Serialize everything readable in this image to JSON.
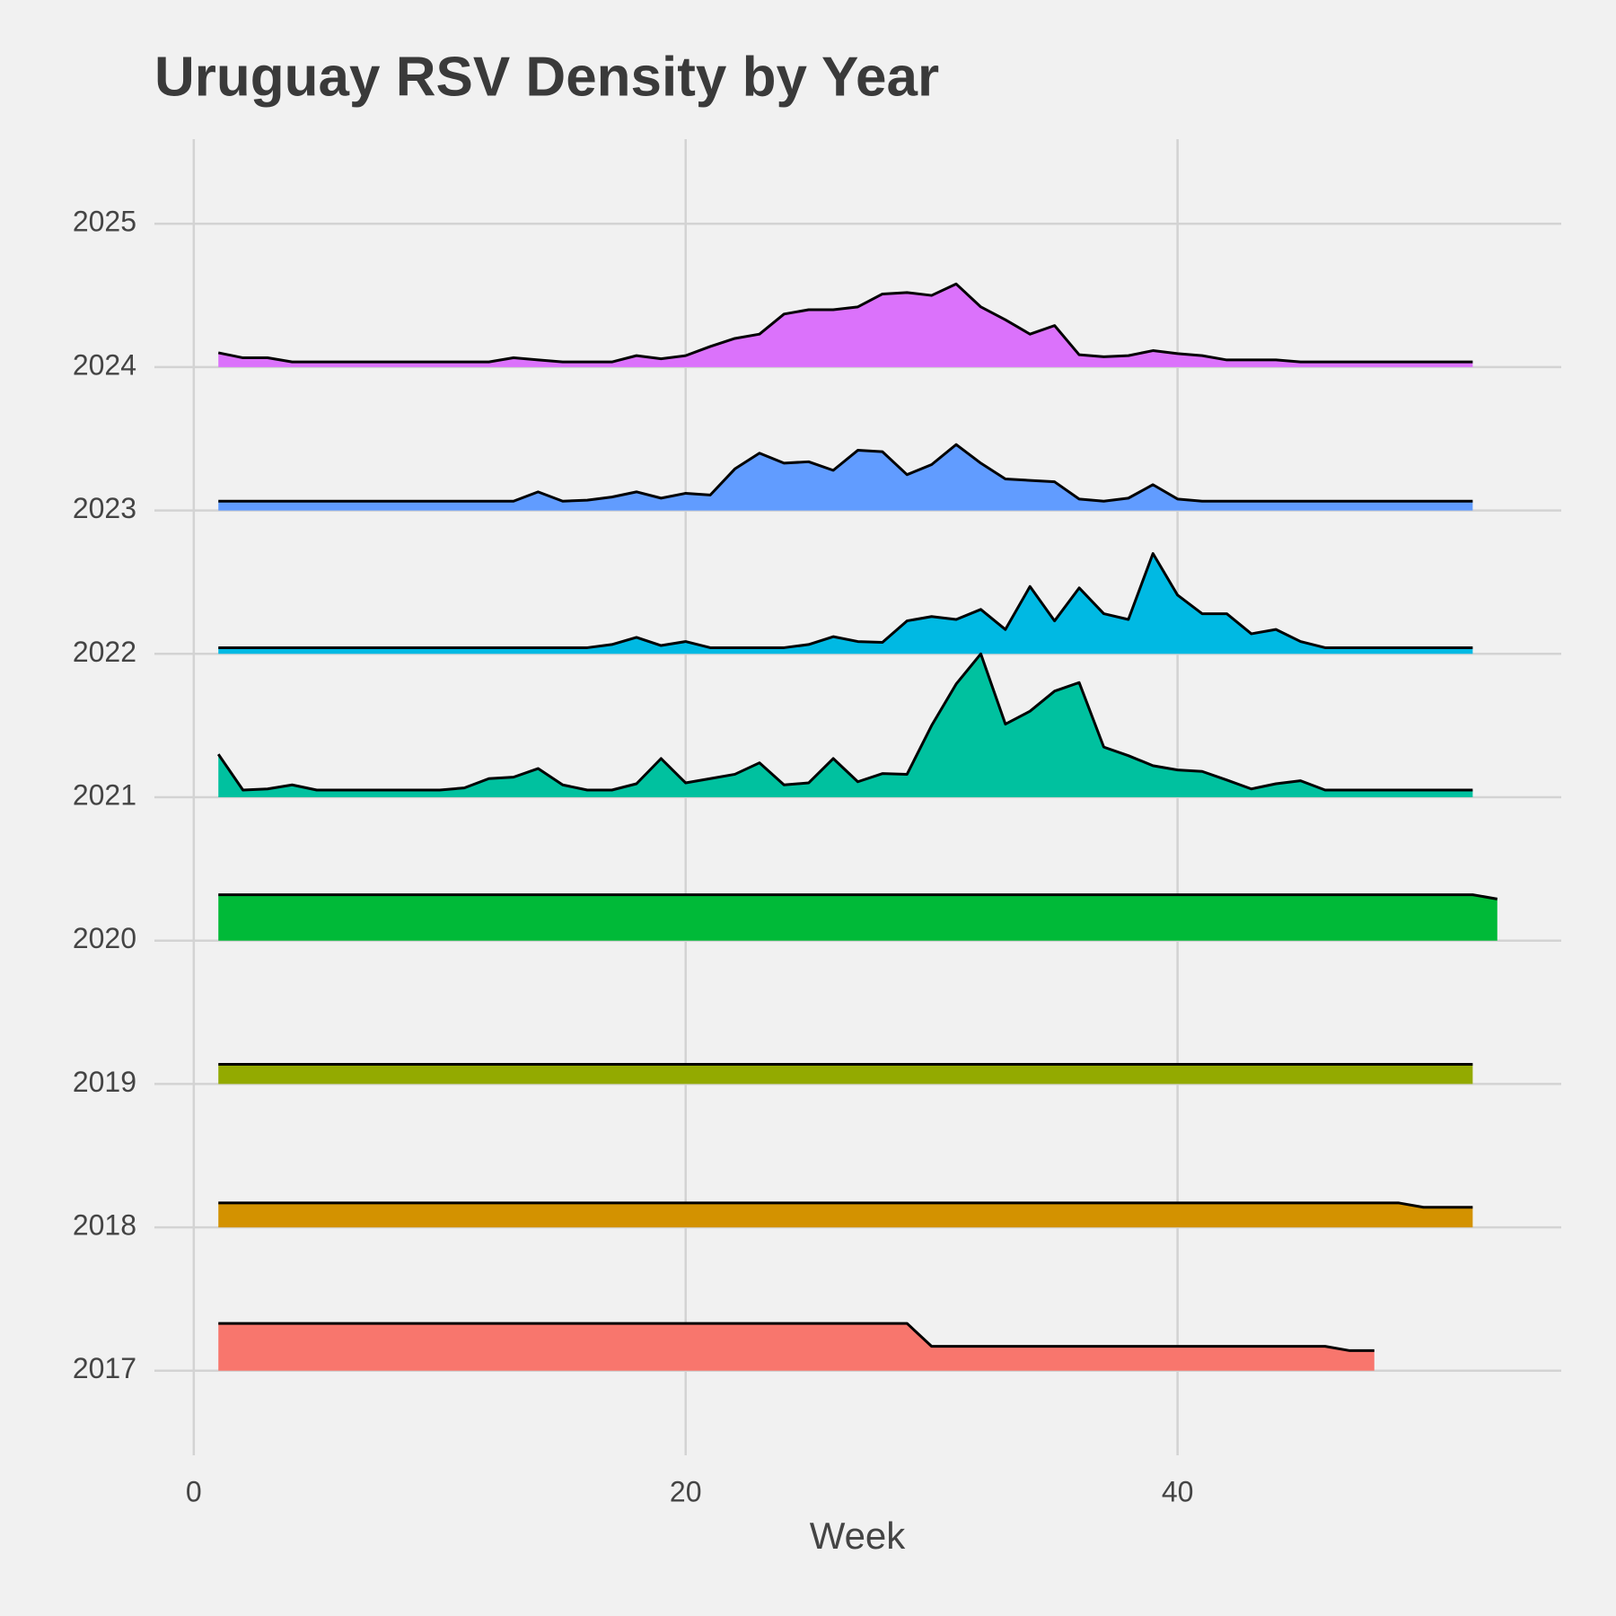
{
  "chart_data": {
    "type": "ridgeline",
    "title": "Uruguay RSV Density by Year",
    "x_label": "Week",
    "x": [
      1,
      2,
      3,
      4,
      5,
      6,
      7,
      8,
      9,
      10,
      11,
      12,
      13,
      14,
      15,
      16,
      17,
      18,
      19,
      20,
      21,
      22,
      23,
      24,
      25,
      26,
      27,
      28,
      29,
      30,
      31,
      32,
      33,
      34,
      35,
      36,
      37,
      38,
      39,
      40,
      41,
      42,
      43,
      44,
      45,
      46,
      47,
      48,
      49,
      50,
      51,
      52,
      53
    ],
    "xlim": [
      -1.6,
      55.6
    ],
    "xticks": [
      0,
      20,
      40
    ],
    "ylim": [
      2016.41,
      2025.59
    ],
    "yticks": [
      2017,
      2018,
      2019,
      2020,
      2021,
      2022,
      2023,
      2024,
      2025
    ],
    "grid": true,
    "series": [
      {
        "color": "#F8766D",
        "values": [
          0.33,
          0.33,
          0.33,
          0.33,
          0.33,
          0.33,
          0.33,
          0.33,
          0.33,
          0.33,
          0.33,
          0.33,
          0.33,
          0.33,
          0.33,
          0.33,
          0.33,
          0.33,
          0.33,
          0.33,
          0.33,
          0.33,
          0.33,
          0.33,
          0.33,
          0.33,
          0.33,
          0.33,
          0.33,
          0.17,
          0.17,
          0.17,
          0.17,
          0.17,
          0.17,
          0.17,
          0.17,
          0.17,
          0.17,
          0.17,
          0.17,
          0.17,
          0.17,
          0.17,
          0.17,
          0.17,
          0.14,
          0.14,
          null,
          null,
          null,
          null,
          null
        ]
      },
      {
        "color": "#D39200",
        "values": [
          0.17,
          0.17,
          0.17,
          0.17,
          0.17,
          0.17,
          0.17,
          0.17,
          0.17,
          0.17,
          0.17,
          0.17,
          0.17,
          0.17,
          0.17,
          0.17,
          0.17,
          0.17,
          0.17,
          0.17,
          0.17,
          0.17,
          0.17,
          0.17,
          0.17,
          0.17,
          0.17,
          0.17,
          0.17,
          0.17,
          0.17,
          0.17,
          0.17,
          0.17,
          0.17,
          0.17,
          0.17,
          0.17,
          0.17,
          0.17,
          0.17,
          0.17,
          0.17,
          0.17,
          0.17,
          0.17,
          0.17,
          0.17,
          0.17,
          0.14,
          0.14,
          0.14,
          null
        ]
      },
      {
        "color": "#93AA00",
        "values": [
          0.137,
          0.137,
          0.137,
          0.137,
          0.137,
          0.137,
          0.137,
          0.137,
          0.137,
          0.137,
          0.137,
          0.137,
          0.137,
          0.137,
          0.137,
          0.137,
          0.137,
          0.137,
          0.137,
          0.137,
          0.137,
          0.137,
          0.137,
          0.137,
          0.137,
          0.137,
          0.137,
          0.137,
          0.137,
          0.137,
          0.137,
          0.137,
          0.137,
          0.137,
          0.137,
          0.137,
          0.137,
          0.137,
          0.137,
          0.137,
          0.137,
          0.137,
          0.137,
          0.137,
          0.137,
          0.137,
          0.137,
          0.137,
          0.137,
          0.137,
          0.137,
          0.137,
          null
        ]
      },
      {
        "color": "#00BA38",
        "values": [
          0.32,
          0.32,
          0.32,
          0.32,
          0.32,
          0.32,
          0.32,
          0.32,
          0.32,
          0.32,
          0.32,
          0.32,
          0.32,
          0.32,
          0.32,
          0.32,
          0.32,
          0.32,
          0.32,
          0.32,
          0.32,
          0.32,
          0.32,
          0.32,
          0.32,
          0.32,
          0.32,
          0.32,
          0.32,
          0.32,
          0.32,
          0.32,
          0.32,
          0.32,
          0.32,
          0.32,
          0.32,
          0.32,
          0.32,
          0.32,
          0.32,
          0.32,
          0.32,
          0.32,
          0.32,
          0.32,
          0.32,
          0.32,
          0.32,
          0.32,
          0.32,
          0.32,
          0.29
        ]
      },
      {
        "color": "#00C19F",
        "values": [
          0.3,
          0.05,
          0.058,
          0.086,
          0.05,
          0.05,
          0.05,
          0.05,
          0.05,
          0.05,
          0.065,
          0.13,
          0.14,
          0.2,
          0.086,
          0.05,
          0.05,
          0.094,
          0.27,
          0.1,
          0.13,
          0.16,
          0.24,
          0.086,
          0.1,
          0.27,
          0.108,
          0.165,
          0.16,
          0.5,
          0.79,
          1.0,
          0.51,
          0.6,
          0.74,
          0.8,
          0.35,
          0.29,
          0.22,
          0.19,
          0.18,
          0.12,
          0.058,
          0.094,
          0.115,
          0.05,
          0.05,
          0.05,
          0.05,
          0.05,
          0.05,
          0.05,
          null
        ]
      },
      {
        "color": "#00B9E3",
        "values": [
          0.043,
          0.043,
          0.043,
          0.043,
          0.043,
          0.043,
          0.043,
          0.043,
          0.043,
          0.043,
          0.043,
          0.043,
          0.043,
          0.043,
          0.043,
          0.043,
          0.065,
          0.115,
          0.058,
          0.086,
          0.043,
          0.043,
          0.043,
          0.043,
          0.065,
          0.12,
          0.086,
          0.08,
          0.23,
          0.26,
          0.24,
          0.31,
          0.17,
          0.47,
          0.23,
          0.46,
          0.28,
          0.24,
          0.7,
          0.41,
          0.28,
          0.28,
          0.14,
          0.17,
          0.086,
          0.043,
          0.043,
          0.043,
          0.043,
          0.043,
          0.043,
          0.043,
          null
        ]
      },
      {
        "color": "#619CFF",
        "values": [
          0.065,
          0.065,
          0.065,
          0.065,
          0.065,
          0.065,
          0.065,
          0.065,
          0.065,
          0.065,
          0.065,
          0.065,
          0.065,
          0.13,
          0.065,
          0.072,
          0.094,
          0.13,
          0.086,
          0.12,
          0.108,
          0.29,
          0.4,
          0.33,
          0.34,
          0.28,
          0.42,
          0.41,
          0.25,
          0.32,
          0.46,
          0.33,
          0.22,
          0.21,
          0.2,
          0.08,
          0.065,
          0.086,
          0.18,
          0.08,
          0.065,
          0.065,
          0.065,
          0.065,
          0.065,
          0.065,
          0.065,
          0.065,
          0.065,
          0.065,
          0.065,
          0.065,
          null
        ]
      },
      {
        "color": "#DB72FB",
        "values": [
          0.1,
          0.065,
          0.065,
          0.036,
          0.036,
          0.036,
          0.036,
          0.036,
          0.036,
          0.036,
          0.036,
          0.036,
          0.065,
          0.05,
          0.036,
          0.036,
          0.036,
          0.08,
          0.058,
          0.08,
          0.144,
          0.2,
          0.23,
          0.37,
          0.4,
          0.4,
          0.42,
          0.51,
          0.52,
          0.5,
          0.58,
          0.42,
          0.33,
          0.23,
          0.29,
          0.086,
          0.072,
          0.08,
          0.115,
          0.094,
          0.08,
          0.05,
          0.05,
          0.05,
          0.036,
          0.036,
          0.036,
          0.036,
          0.036,
          0.036,
          0.036,
          0.036,
          null
        ]
      }
    ]
  }
}
